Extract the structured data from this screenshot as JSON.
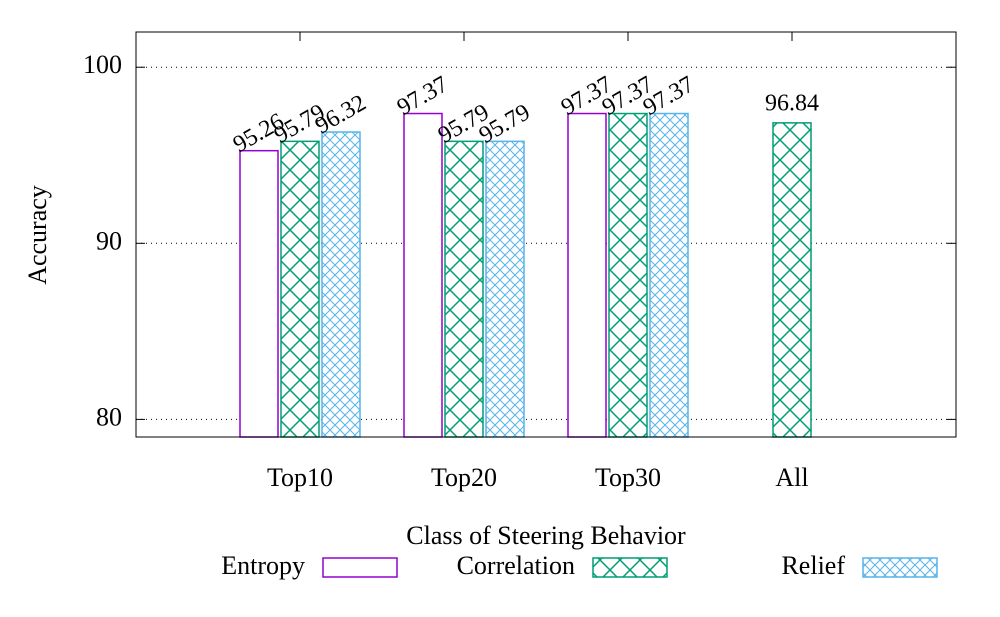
{
  "chart_data": {
    "type": "bar",
    "xlabel": "Class of Steering Behavior",
    "ylabel": "Accuracy",
    "categories": [
      "Top10",
      "Top20",
      "Top30",
      "All"
    ],
    "series": [
      {
        "name": "Entropy",
        "color": "#9400d3",
        "pattern": "none",
        "values": [
          95.26,
          97.37,
          97.37,
          null
        ]
      },
      {
        "name": "Correlation",
        "color": "#009e73",
        "pattern": "crosshatch",
        "values": [
          95.79,
          95.79,
          97.37,
          96.84
        ]
      },
      {
        "name": "Relief",
        "color": "#56b4e9",
        "pattern": "fine-crosshatch",
        "values": [
          96.32,
          95.79,
          97.37,
          null
        ]
      }
    ],
    "ylim": [
      79,
      102
    ],
    "yticks": [
      80,
      90,
      100
    ],
    "grid": true,
    "legend": "bottom"
  }
}
